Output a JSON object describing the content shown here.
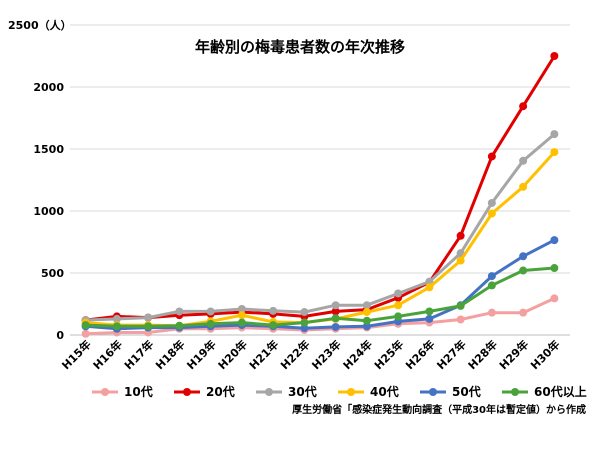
{
  "chart_data": {
    "type": "line",
    "title": "年齢別の梅毒患者数の年次推移",
    "ylabel_unit": "2500（人）",
    "ylim": [
      0,
      2500
    ],
    "yticks": [
      "0",
      "500",
      "1000",
      "1500",
      "2000"
    ],
    "grid": true,
    "legend_position": "bottom",
    "categories": [
      "H15年",
      "H16年",
      "H17年",
      "H18年",
      "H19年",
      "H20年",
      "H21年",
      "H22年",
      "H23年",
      "H24年",
      "H25年",
      "H26年",
      "H27年",
      "H28年",
      "H29年",
      "H30年"
    ],
    "series": [
      {
        "name": "10代",
        "color": "#f4a0a0",
        "values": [
          10,
          20,
          20,
          50,
          50,
          60,
          50,
          40,
          50,
          60,
          90,
          100,
          125,
          180,
          180,
          295
        ]
      },
      {
        "name": "20代",
        "color": "#e00000",
        "values": [
          120,
          150,
          140,
          160,
          170,
          185,
          170,
          150,
          190,
          205,
          300,
          425,
          800,
          1440,
          1845,
          2250
        ]
      },
      {
        "name": "30代",
        "color": "#a6a6a6",
        "values": [
          120,
          130,
          140,
          190,
          190,
          210,
          195,
          185,
          240,
          240,
          335,
          430,
          660,
          1065,
          1405,
          1620
        ]
      },
      {
        "name": "40代",
        "color": "#ffc000",
        "values": [
          100,
          80,
          80,
          75,
          110,
          160,
          105,
          100,
          130,
          185,
          240,
          385,
          600,
          980,
          1195,
          1475
        ]
      },
      {
        "name": "50代",
        "color": "#4472c4",
        "values": [
          70,
          50,
          60,
          60,
          70,
          80,
          70,
          55,
          65,
          70,
          110,
          130,
          240,
          475,
          635,
          765
        ]
      },
      {
        "name": "60代以上",
        "color": "#4aa33a",
        "values": [
          80,
          70,
          70,
          75,
          90,
          100,
          80,
          100,
          135,
          115,
          150,
          190,
          235,
          400,
          520,
          540
        ]
      }
    ]
  },
  "source_note": "厚生労働省「感染症発生動向調査（平成30年は暫定値）から作成"
}
